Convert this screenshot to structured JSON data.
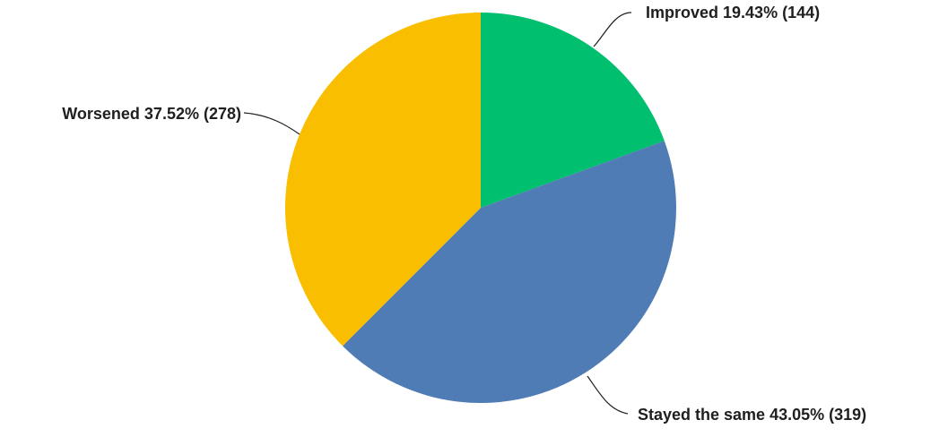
{
  "chart_data": {
    "type": "pie",
    "slices": [
      {
        "name": "Improved",
        "percent": 19.43,
        "count": 144,
        "color": "#00bf6f",
        "label": "Improved 19.43% (144)"
      },
      {
        "name": "Stayed the same",
        "percent": 43.05,
        "count": 319,
        "color": "#507cb6",
        "label": "Stayed the same 43.05% (319)"
      },
      {
        "name": "Worsened",
        "percent": 37.52,
        "count": 278,
        "color": "#f9be00",
        "label": "Worsened 37.52% (278)"
      }
    ],
    "start": "12 o'clock",
    "direction": "clockwise"
  }
}
